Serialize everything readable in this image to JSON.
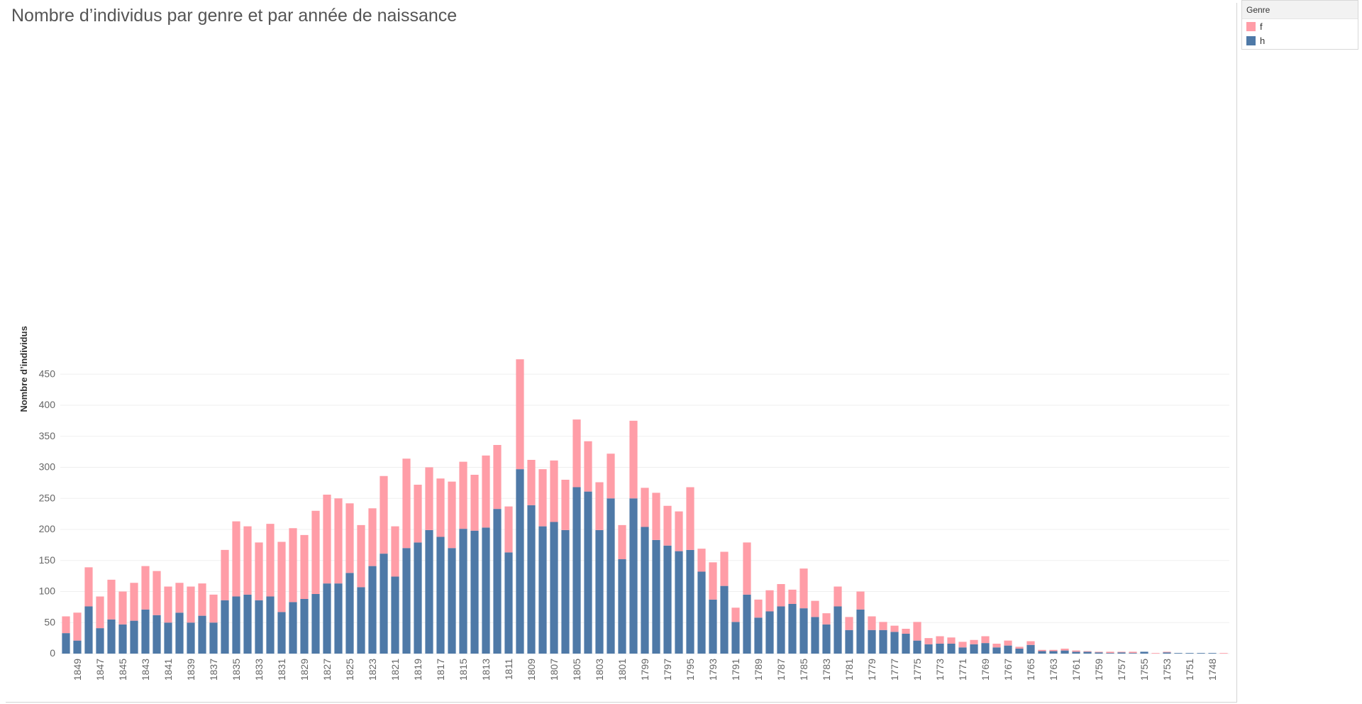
{
  "legend": {
    "title": "Genre",
    "items": [
      {
        "label": "f",
        "color": "#FF9DA7"
      },
      {
        "label": "h",
        "color": "#4E79A7"
      }
    ]
  },
  "chart_data": {
    "type": "bar",
    "stacked": true,
    "title": "Nombre d’individus par genre et par année de naissance",
    "xlabel": "",
    "ylabel": "Nombre d’individus",
    "ylim": [
      0,
      490
    ],
    "yticks": [
      0,
      50,
      100,
      150,
      200,
      250,
      300,
      350,
      400,
      450
    ],
    "grid": true,
    "legend_position": "top-right",
    "x_tick_labels_shown": [
      "1849",
      "1847",
      "1845",
      "1843",
      "1841",
      "1839",
      "1837",
      "1835",
      "1833",
      "1831",
      "1829",
      "1827",
      "1825",
      "1823",
      "1821",
      "1819",
      "1817",
      "1815",
      "1813",
      "1811",
      "1809",
      "1807",
      "1805",
      "1803",
      "1801",
      "1799",
      "1797",
      "1795",
      "1793",
      "1791",
      "1789",
      "1787",
      "1785",
      "1783",
      "1781",
      "1779",
      "1777",
      "1775",
      "1773",
      "1771",
      "1769",
      "1767",
      "1765",
      "1763",
      "1761",
      "1759",
      "1757",
      "1755",
      "1753",
      "1751",
      "1748"
    ],
    "categories": [
      "1850",
      "1849",
      "1848",
      "1847",
      "1846",
      "1845",
      "1844",
      "1843",
      "1842",
      "1841",
      "1840",
      "1839",
      "1838",
      "1837",
      "1836",
      "1835",
      "1834",
      "1833",
      "1832",
      "1831",
      "1830",
      "1829",
      "1828",
      "1827",
      "1826",
      "1825",
      "1824",
      "1823",
      "1822",
      "1821",
      "1820",
      "1819",
      "1818",
      "1817",
      "1816",
      "1815",
      "1814",
      "1813",
      "1812",
      "1811",
      "1810",
      "1809",
      "1808",
      "1807",
      "1806",
      "1805",
      "1804",
      "1803",
      "1802",
      "1801",
      "1800",
      "1799",
      "1798",
      "1797",
      "1796",
      "1795",
      "1794",
      "1793",
      "1792",
      "1791",
      "1790",
      "1789",
      "1788",
      "1787",
      "1786",
      "1785",
      "1784",
      "1783",
      "1782",
      "1781",
      "1780",
      "1779",
      "1778",
      "1777",
      "1776",
      "1775",
      "1774",
      "1773",
      "1772",
      "1771",
      "1770",
      "1769",
      "1768",
      "1767",
      "1766",
      "1765",
      "1764",
      "1763",
      "1762",
      "1761",
      "1760",
      "1759",
      "1758",
      "1757",
      "1756",
      "1755",
      "1754",
      "1753",
      "1752",
      "1751",
      "1749",
      "1748",
      "1747"
    ],
    "series": [
      {
        "name": "h",
        "color": "#4E79A7",
        "values": [
          33,
          21,
          76,
          41,
          55,
          47,
          53,
          71,
          62,
          50,
          66,
          50,
          61,
          50,
          86,
          92,
          95,
          86,
          92,
          67,
          83,
          88,
          96,
          113,
          113,
          130,
          107,
          141,
          161,
          124,
          170,
          179,
          199,
          188,
          170,
          201,
          198,
          203,
          233,
          163,
          297,
          239,
          205,
          212,
          199,
          268,
          261,
          199,
          250,
          152,
          250,
          204,
          183,
          174,
          165,
          167,
          132,
          87,
          109,
          51,
          95,
          58,
          68,
          76,
          80,
          73,
          59,
          47,
          76,
          38,
          71,
          38,
          38,
          35,
          32,
          21,
          15,
          16,
          16,
          10,
          15,
          17,
          10,
          13,
          8,
          14,
          4,
          4,
          5,
          3,
          3,
          2,
          1,
          2,
          1,
          3,
          0,
          2,
          1,
          1,
          1,
          1,
          0
        ]
      },
      {
        "name": "f",
        "color": "#FF9DA7",
        "values": [
          27,
          45,
          63,
          51,
          64,
          53,
          61,
          70,
          71,
          58,
          48,
          58,
          52,
          45,
          81,
          121,
          110,
          93,
          117,
          113,
          119,
          103,
          134,
          143,
          137,
          112,
          100,
          93,
          125,
          81,
          144,
          93,
          101,
          94,
          107,
          108,
          90,
          116,
          103,
          74,
          177,
          73,
          92,
          99,
          81,
          109,
          81,
          77,
          72,
          55,
          125,
          63,
          76,
          64,
          64,
          101,
          37,
          60,
          55,
          23,
          84,
          29,
          34,
          36,
          23,
          64,
          26,
          18,
          32,
          21,
          29,
          22,
          13,
          10,
          8,
          30,
          10,
          12,
          10,
          9,
          7,
          11,
          6,
          8,
          3,
          6,
          2,
          2,
          3,
          2,
          1,
          1,
          2,
          1,
          2,
          0,
          1,
          1,
          0,
          0,
          0,
          0,
          1
        ]
      }
    ]
  }
}
